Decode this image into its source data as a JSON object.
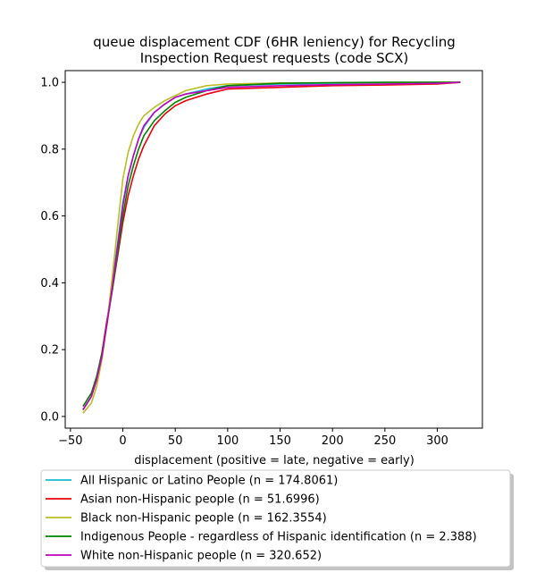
{
  "chart_data": {
    "type": "line",
    "title_line1": "queue displacement CDF (6HR leniency) for Recycling",
    "title_line2": "Inspection Request  requests (code SCX)",
    "xlabel": "displacement (positive = late, negative = early)",
    "ylabel": "",
    "xlim": [
      -55,
      343
    ],
    "ylim": [
      -0.035,
      1.035
    ],
    "x_ticks": [
      -50,
      0,
      50,
      100,
      150,
      200,
      250,
      300
    ],
    "y_ticks": [
      0.0,
      0.2,
      0.4,
      0.6,
      0.8,
      1.0
    ],
    "x_tick_labels": [
      "−50",
      "0",
      "50",
      "100",
      "150",
      "200",
      "250",
      "300"
    ],
    "y_tick_labels": [
      "0.0",
      "0.2",
      "0.4",
      "0.6",
      "0.8",
      "1.0"
    ],
    "grid": false,
    "legend_position": "below",
    "series": [
      {
        "name": "All Hispanic or Latino People (n = 174.8061)",
        "color": "#17becf",
        "x": [
          -38,
          -30,
          -25,
          -20,
          -15,
          -10,
          -5,
          0,
          5,
          10,
          15,
          20,
          30,
          40,
          50,
          60,
          80,
          100,
          150,
          200,
          250,
          300,
          322
        ],
        "y": [
          0.02,
          0.06,
          0.11,
          0.19,
          0.29,
          0.4,
          0.52,
          0.64,
          0.72,
          0.78,
          0.83,
          0.865,
          0.91,
          0.935,
          0.955,
          0.965,
          0.98,
          0.99,
          0.995,
          0.997,
          0.998,
          0.999,
          1.0
        ]
      },
      {
        "name": "Asian non-Hispanic people (n = 51.6996)",
        "color": "#e8000b",
        "x": [
          -38,
          -30,
          -25,
          -20,
          -15,
          -10,
          -5,
          0,
          5,
          10,
          15,
          20,
          30,
          40,
          50,
          60,
          80,
          100,
          150,
          200,
          250,
          300,
          322
        ],
        "y": [
          0.02,
          0.06,
          0.11,
          0.19,
          0.29,
          0.38,
          0.48,
          0.58,
          0.66,
          0.72,
          0.77,
          0.81,
          0.87,
          0.905,
          0.93,
          0.945,
          0.965,
          0.98,
          0.985,
          0.99,
          0.992,
          0.995,
          1.0
        ]
      },
      {
        "name": "Black non-Hispanic people (n = 162.3554)",
        "color": "#bcbd22",
        "x": [
          -38,
          -30,
          -25,
          -20,
          -15,
          -10,
          -5,
          0,
          5,
          10,
          15,
          20,
          30,
          40,
          50,
          60,
          80,
          100,
          150,
          200,
          250,
          300,
          322
        ],
        "y": [
          0.01,
          0.04,
          0.09,
          0.17,
          0.28,
          0.42,
          0.57,
          0.71,
          0.79,
          0.84,
          0.875,
          0.9,
          0.925,
          0.945,
          0.96,
          0.975,
          0.99,
          0.995,
          0.998,
          0.999,
          0.999,
          1.0,
          1.0
        ]
      },
      {
        "name": "Indigenous People - regardless of Hispanic identification (n = 2.388)",
        "color": "#008000",
        "x": [
          -38,
          -30,
          -25,
          -20,
          -15,
          -10,
          -5,
          0,
          5,
          10,
          15,
          20,
          30,
          40,
          50,
          60,
          80,
          100,
          150,
          200,
          250,
          300,
          322
        ],
        "y": [
          0.03,
          0.07,
          0.12,
          0.19,
          0.28,
          0.38,
          0.49,
          0.6,
          0.69,
          0.75,
          0.8,
          0.84,
          0.885,
          0.915,
          0.94,
          0.955,
          0.975,
          0.99,
          0.997,
          0.999,
          1.0,
          1.0,
          1.0
        ]
      },
      {
        "name": "White non-Hispanic people (n = 320.652)",
        "color": "#bf00bf",
        "x": [
          -38,
          -30,
          -25,
          -20,
          -15,
          -10,
          -5,
          0,
          5,
          10,
          15,
          20,
          30,
          40,
          50,
          60,
          80,
          100,
          150,
          200,
          250,
          300,
          322
        ],
        "y": [
          0.02,
          0.06,
          0.11,
          0.18,
          0.28,
          0.39,
          0.51,
          0.63,
          0.72,
          0.78,
          0.83,
          0.87,
          0.91,
          0.935,
          0.955,
          0.965,
          0.975,
          0.985,
          0.99,
          0.993,
          0.995,
          0.997,
          1.0
        ]
      }
    ]
  }
}
